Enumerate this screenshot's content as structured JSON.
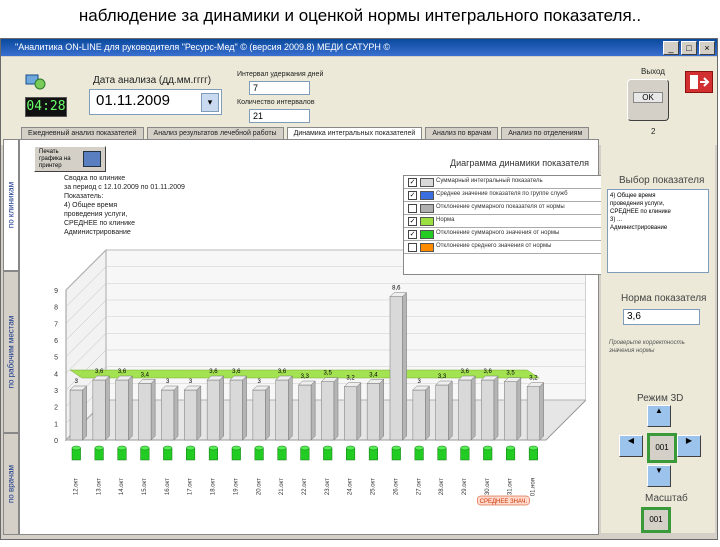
{
  "slide": {
    "title": "наблюдение за динамики и оценкой нормы интегрального показателя.."
  },
  "window": {
    "title": "\"Аналитика ON-LINE для руководителя \"Ресурс-Мед\" © (версия 2009.8) МЕДИ САТУРН ©",
    "min": "_",
    "max": "□",
    "close": "×"
  },
  "toolbar": {
    "clock": "04:28",
    "date_label": "Дата анализа (дд.мм.гггг)",
    "date_value": "01.11.2009",
    "field1_label": "Интервал удержания дней",
    "field1_value": "7",
    "field2_label": "Количество интервалов",
    "field2_value": "21",
    "right_top_label": "Выход",
    "right_btn": "OK",
    "counter": "2"
  },
  "tabs": [
    "Ежедневный анализ показателей",
    "Анализ результатов лечебной работы",
    "Динамика интегральных показателей",
    "Анализ по врачам",
    "Анализ по отделениям"
  ],
  "side_tabs": [
    "по клиникам",
    "по рабочим местам",
    "по врачам"
  ],
  "content": {
    "button_label": "Печать графика на принтер",
    "info_text": [
      "Сводка по клинике",
      "за период с 12.10.2009 по 01.11.2009",
      "Показатель:",
      "4) Общее время",
      "проведения услуги,",
      "СРЕДНЕЕ по клинике",
      "Администрирование"
    ],
    "chart_title": "Диаграмма динамики показателя"
  },
  "legend": [
    {
      "checked": true,
      "color": "#d9d9d9",
      "text": "Суммарный интегральный показатель"
    },
    {
      "checked": true,
      "color": "#3b6fe0",
      "text": "Среднее значение показателя по группе служб"
    },
    {
      "checked": false,
      "color": "#b0b0b0",
      "text": "Отклонение суммарного показателя от нормы"
    },
    {
      "checked": true,
      "color": "#9be040",
      "text": "Норма"
    },
    {
      "checked": true,
      "color": "#22cc22",
      "text": "Отклонение суммарного значения от нормы"
    },
    {
      "checked": false,
      "color": "#ff8c00",
      "text": "Отклонение среднего значения от нормы"
    }
  ],
  "chart_data": {
    "type": "bar",
    "series": [
      {
        "name": "Суммарный интегральный показатель",
        "values": [
          3.0,
          3.6,
          3.6,
          3.4,
          3.0,
          3.0,
          3.6,
          3.6,
          3.0,
          3.6,
          3.3,
          3.5,
          3.2,
          3.4,
          8.6,
          3.0,
          3.3,
          3.6,
          3.6,
          3.5,
          3.2
        ]
      },
      {
        "name": "Норма",
        "values": [
          3.6,
          3.6,
          3.6,
          3.6,
          3.6,
          3.6,
          3.6,
          3.6,
          3.6,
          3.6,
          3.6,
          3.6,
          3.6,
          3.6,
          3.6,
          3.6,
          3.6,
          3.6,
          3.6,
          3.6,
          3.6
        ]
      }
    ],
    "categories": [
      "12.окт",
      "13.окт",
      "14.окт",
      "15.окт",
      "16.окт",
      "17.окт",
      "18.окт",
      "19.окт",
      "20.окт",
      "21.окт",
      "22.окт",
      "23.окт",
      "24.окт",
      "25.окт",
      "26.окт",
      "27.окт",
      "28.окт",
      "29.окт",
      "30.окт",
      "31.окт",
      "01.ноя"
    ],
    "ylabels": [
      "0",
      "1",
      "2",
      "3",
      "4",
      "5",
      "6",
      "7",
      "8",
      "9"
    ],
    "ylim": [
      0,
      9
    ],
    "annotation": "СРЕДНЕЕ ЗНАЧ."
  },
  "right_panel": {
    "title1": "Выбор показателя",
    "list_items": [
      "4) Общее время",
      "проведения услуги,",
      "СРЕДНЕЕ по клинике",
      "3) ...",
      "Администрирование"
    ],
    "title2": "Норма показателя",
    "norm_value": "3,6",
    "desc": "Проверьте корректность значения нормы",
    "title3": "Режим 3D",
    "center_btn": "001",
    "title4": "Масштаб",
    "zoom_btn": "001"
  }
}
